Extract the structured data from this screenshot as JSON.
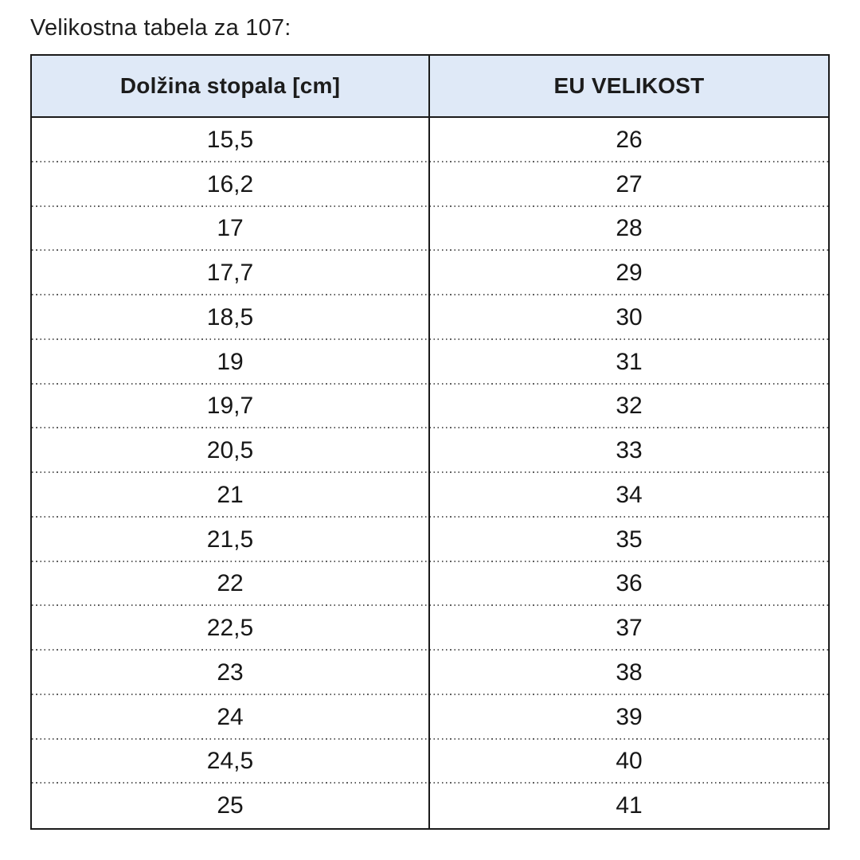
{
  "page": {
    "title": "Velikostna tabela za 107:"
  },
  "colors": {
    "header_bg": "#dfe9f7",
    "border": "#1a1a1a",
    "text": "#1c1c1c",
    "dotted_separator": "#5f5f5f"
  },
  "chart_data": {
    "type": "table",
    "title": "Velikostna tabela za 107:",
    "columns": [
      "Dolžina stopala [cm]",
      "EU VELIKOST"
    ],
    "rows": [
      [
        "15,5",
        "26"
      ],
      [
        "16,2",
        "27"
      ],
      [
        "17",
        "28"
      ],
      [
        "17,7",
        "29"
      ],
      [
        "18,5",
        "30"
      ],
      [
        "19",
        "31"
      ],
      [
        "19,7",
        "32"
      ],
      [
        "20,5",
        "33"
      ],
      [
        "21",
        "34"
      ],
      [
        "21,5",
        "35"
      ],
      [
        "22",
        "36"
      ],
      [
        "22,5",
        "37"
      ],
      [
        "23",
        "38"
      ],
      [
        "24",
        "39"
      ],
      [
        "24,5",
        "40"
      ],
      [
        "25",
        "41"
      ]
    ],
    "layout": {
      "grid": "dotted horizontal separators between rows",
      "header_style": "bold on light blue background",
      "alignment": "center"
    }
  }
}
